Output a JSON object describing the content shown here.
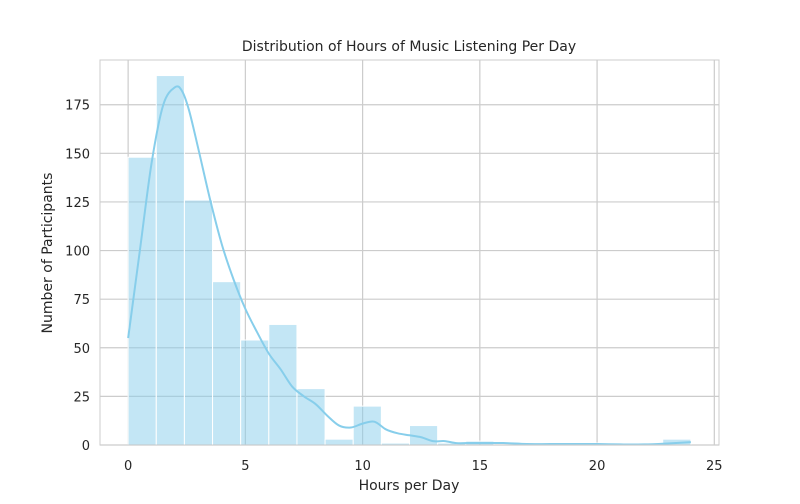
{
  "chart_data": {
    "type": "bar",
    "title": "Distribution of Hours of Music Listening Per Day",
    "xlabel": "Hours per Day",
    "ylabel": "Number of Participants",
    "xlim": [
      -1.2,
      25.2
    ],
    "ylim": [
      0,
      198
    ],
    "xticks": [
      0,
      5,
      10,
      15,
      20,
      25
    ],
    "yticks": [
      0,
      25,
      50,
      75,
      100,
      125,
      150,
      175
    ],
    "grid": true,
    "bin_edges": [
      0,
      1.2,
      2.4,
      3.6,
      4.8,
      6.0,
      7.2,
      8.4,
      9.6,
      10.8,
      12.0,
      13.2,
      14.4,
      15.6,
      16.8,
      18.0,
      19.2,
      20.4,
      21.6,
      22.8,
      24.0
    ],
    "values": [
      148,
      190,
      126,
      84,
      54,
      62,
      29,
      3,
      20,
      1,
      10,
      1,
      2,
      0,
      1,
      0,
      1,
      0,
      0,
      3
    ],
    "kde": {
      "x": [
        0,
        0.5,
        1,
        1.5,
        2,
        2.3,
        2.6,
        3,
        3.5,
        4,
        4.5,
        5,
        5.5,
        6,
        6.5,
        7,
        7.5,
        8,
        8.5,
        9,
        9.5,
        10,
        10.5,
        11,
        11.5,
        12,
        12.5,
        13,
        13.5,
        14,
        14.5,
        15,
        16,
        17,
        18,
        19,
        20,
        21,
        22,
        23,
        24
      ],
      "y": [
        55,
        100,
        145,
        175,
        184,
        182,
        172,
        152,
        126,
        103,
        85,
        70,
        58,
        47,
        39,
        30,
        25,
        21,
        15,
        10,
        9,
        11,
        12,
        8,
        6,
        5,
        4,
        2,
        2,
        1,
        1,
        1,
        1,
        0.5,
        0.5,
        0.5,
        0.5,
        0.3,
        0.3,
        0.8,
        1.5
      ]
    },
    "bar_color": "#87CEEB",
    "bar_opacity": 0.5,
    "line_color": "#87CEEB"
  }
}
